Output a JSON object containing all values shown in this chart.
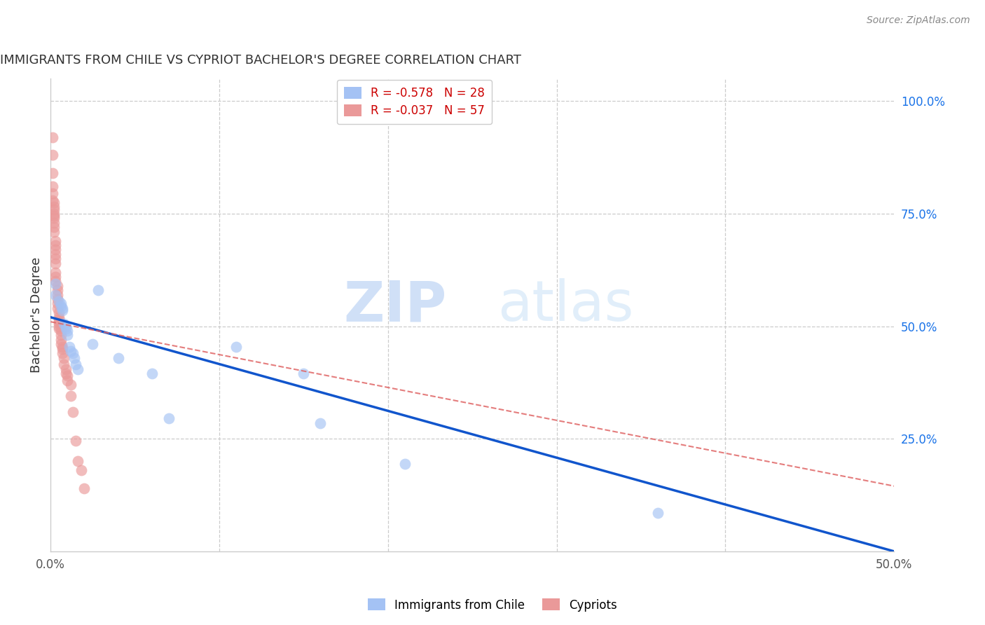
{
  "title": "IMMIGRANTS FROM CHILE VS CYPRIOT BACHELOR'S DEGREE CORRELATION CHART",
  "source": "Source: ZipAtlas.com",
  "ylabel": "Bachelor's Degree",
  "xlim": [
    0.0,
    0.5
  ],
  "ylim": [
    0.0,
    1.05
  ],
  "legend_blue_label": "R = -0.578   N = 28",
  "legend_pink_label": "R = -0.037   N = 57",
  "blue_color": "#a4c2f4",
  "pink_color": "#ea9999",
  "blue_line_color": "#1155cc",
  "pink_line_color": "#e06666",
  "watermark_zip": "ZIP",
  "watermark_atlas": "atlas",
  "blue_scatter_x": [
    0.003,
    0.003,
    0.005,
    0.006,
    0.006,
    0.007,
    0.007,
    0.008,
    0.009,
    0.009,
    0.01,
    0.01,
    0.011,
    0.012,
    0.013,
    0.014,
    0.015,
    0.016,
    0.025,
    0.028,
    0.04,
    0.06,
    0.07,
    0.11,
    0.15,
    0.16,
    0.21,
    0.36
  ],
  "blue_scatter_y": [
    0.595,
    0.57,
    0.555,
    0.55,
    0.545,
    0.54,
    0.535,
    0.505,
    0.5,
    0.495,
    0.49,
    0.48,
    0.455,
    0.445,
    0.44,
    0.43,
    0.415,
    0.405,
    0.46,
    0.58,
    0.43,
    0.395,
    0.295,
    0.455,
    0.395,
    0.285,
    0.195,
    0.085
  ],
  "pink_scatter_x": [
    0.001,
    0.001,
    0.001,
    0.001,
    0.001,
    0.001,
    0.002,
    0.002,
    0.002,
    0.002,
    0.002,
    0.002,
    0.002,
    0.002,
    0.002,
    0.003,
    0.003,
    0.003,
    0.003,
    0.003,
    0.003,
    0.003,
    0.003,
    0.003,
    0.004,
    0.004,
    0.004,
    0.004,
    0.004,
    0.004,
    0.005,
    0.005,
    0.005,
    0.005,
    0.005,
    0.005,
    0.005,
    0.006,
    0.006,
    0.006,
    0.006,
    0.007,
    0.007,
    0.007,
    0.008,
    0.008,
    0.009,
    0.009,
    0.01,
    0.01,
    0.012,
    0.012,
    0.013,
    0.015,
    0.016,
    0.018,
    0.02
  ],
  "pink_scatter_y": [
    0.92,
    0.88,
    0.84,
    0.81,
    0.795,
    0.78,
    0.775,
    0.765,
    0.76,
    0.75,
    0.745,
    0.74,
    0.73,
    0.72,
    0.71,
    0.69,
    0.68,
    0.67,
    0.66,
    0.65,
    0.64,
    0.62,
    0.61,
    0.6,
    0.59,
    0.58,
    0.57,
    0.56,
    0.55,
    0.54,
    0.53,
    0.52,
    0.515,
    0.51,
    0.505,
    0.5,
    0.495,
    0.49,
    0.48,
    0.47,
    0.46,
    0.455,
    0.45,
    0.44,
    0.43,
    0.415,
    0.405,
    0.395,
    0.39,
    0.38,
    0.37,
    0.345,
    0.31,
    0.245,
    0.2,
    0.18,
    0.14
  ],
  "blue_line_x0": 0.0,
  "blue_line_x1": 0.5,
  "blue_line_y0": 0.52,
  "blue_line_y1": 0.0,
  "pink_line_x0": 0.0,
  "pink_line_x1": 0.5,
  "pink_line_y0": 0.51,
  "pink_line_y1": 0.145
}
